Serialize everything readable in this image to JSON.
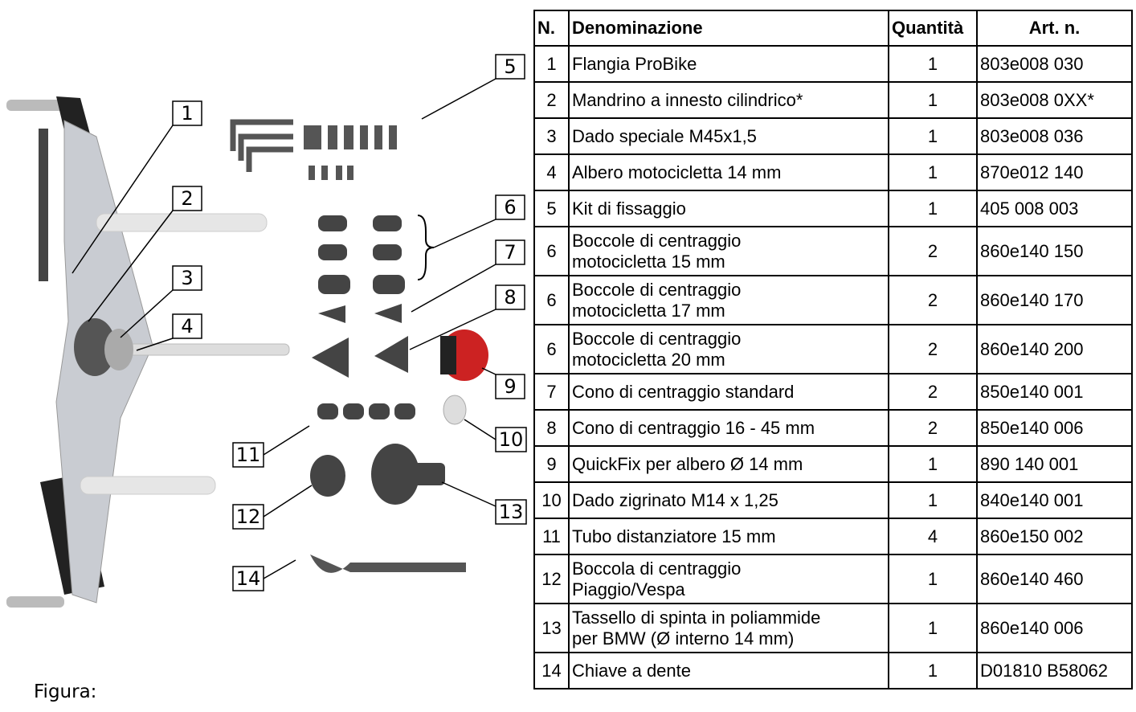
{
  "figure": {
    "callouts": [
      "1",
      "2",
      "3",
      "4",
      "5",
      "6",
      "7",
      "8",
      "9",
      "10",
      "11",
      "12",
      "13",
      "14"
    ],
    "caption": "Figura:"
  },
  "table": {
    "header": [
      "N.",
      "Denominazione",
      "Quantità",
      "Art. n."
    ],
    "rows": [
      [
        "1",
        "Flangia ProBike",
        "1",
        "803e008 030"
      ],
      [
        "2",
        "Mandrino a innesto cilindrico*",
        "1",
        "803e008 0XX*"
      ],
      [
        "3",
        "Dado speciale M45x1,5",
        "1",
        "803e008 036"
      ],
      [
        "4",
        "Albero motocicletta 14 mm",
        "1",
        "870e012 140"
      ],
      [
        "5",
        "Kit di fissaggio",
        "1",
        "405 008 003"
      ],
      [
        "6",
        "Boccole di centraggio\nmotocicletta 15 mm",
        "2",
        "860e140 150"
      ],
      [
        "6",
        "Boccole di centraggio\nmotocicletta 17 mm",
        "2",
        "860e140 170"
      ],
      [
        "6",
        "Boccole di centraggio\nmotocicletta 20 mm",
        "2",
        "860e140 200"
      ],
      [
        "7",
        "Cono di centraggio standard",
        "2",
        "850e140 001"
      ],
      [
        "8",
        "Cono di centraggio 16 - 45 mm",
        "2",
        "850e140 006"
      ],
      [
        "9",
        "QuickFix per albero Ø 14 mm",
        "1",
        "890 140 001"
      ],
      [
        "10",
        "Dado zigrinato M14 x 1,25",
        "1",
        "840e140 001"
      ],
      [
        "11",
        "Tubo distanziatore 15 mm",
        "4",
        "860e150 002"
      ],
      [
        "12",
        "Boccola di centraggio\nPiaggio/Vespa",
        "1",
        "860e140 460"
      ],
      [
        "13",
        "Tassello di spinta in poliammide\nper BMW  (Ø interno 14 mm)",
        "1",
        "860e140 006"
      ],
      [
        "14",
        "Chiave a dente",
        "1",
        "D01810 B58062"
      ]
    ]
  }
}
